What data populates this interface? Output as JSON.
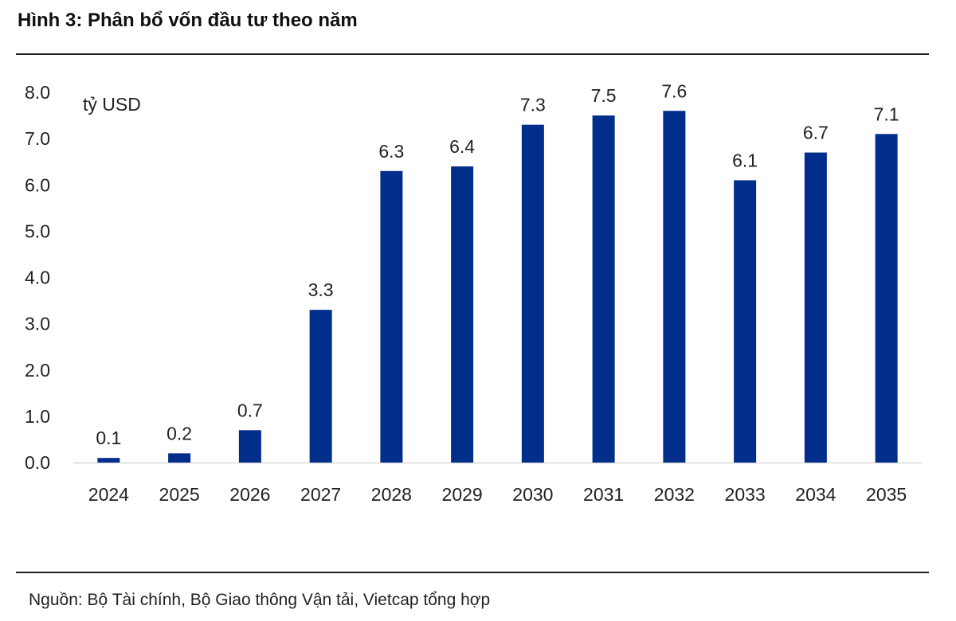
{
  "title": "Hình 3: Phân bổ vốn đầu tư theo năm",
  "source": "Nguồn: Bộ Tài chính, Bộ Giao thông Vận tải, Vietcap tổng hợp",
  "colors": {
    "bar": "#002E8A",
    "axis": "#d9d9d9",
    "text": "#222222"
  },
  "chart_data": {
    "type": "bar",
    "title": "Hình 3: Phân bổ vốn đầu tư theo năm",
    "ylabel": "tỷ USD",
    "xlabel": "",
    "categories": [
      "2024",
      "2025",
      "2026",
      "2027",
      "2028",
      "2029",
      "2030",
      "2031",
      "2032",
      "2033",
      "2034",
      "2035"
    ],
    "values": [
      0.1,
      0.2,
      0.7,
      3.3,
      6.3,
      6.4,
      7.3,
      7.5,
      7.6,
      6.1,
      6.7,
      7.1
    ],
    "value_labels": [
      "0.1",
      "0.2",
      "0.7",
      "3.3",
      "6.3",
      "6.4",
      "7.3",
      "7.5",
      "7.6",
      "6.1",
      "6.7",
      "7.1"
    ],
    "ylim": [
      0,
      8
    ],
    "yticks": [
      0,
      1,
      2,
      3,
      4,
      5,
      6,
      7,
      8
    ],
    "ytick_labels": [
      "0.0",
      "1.0",
      "2.0",
      "3.0",
      "4.0",
      "5.0",
      "6.0",
      "7.0",
      "8.0"
    ],
    "grid": false,
    "legend": "none"
  }
}
